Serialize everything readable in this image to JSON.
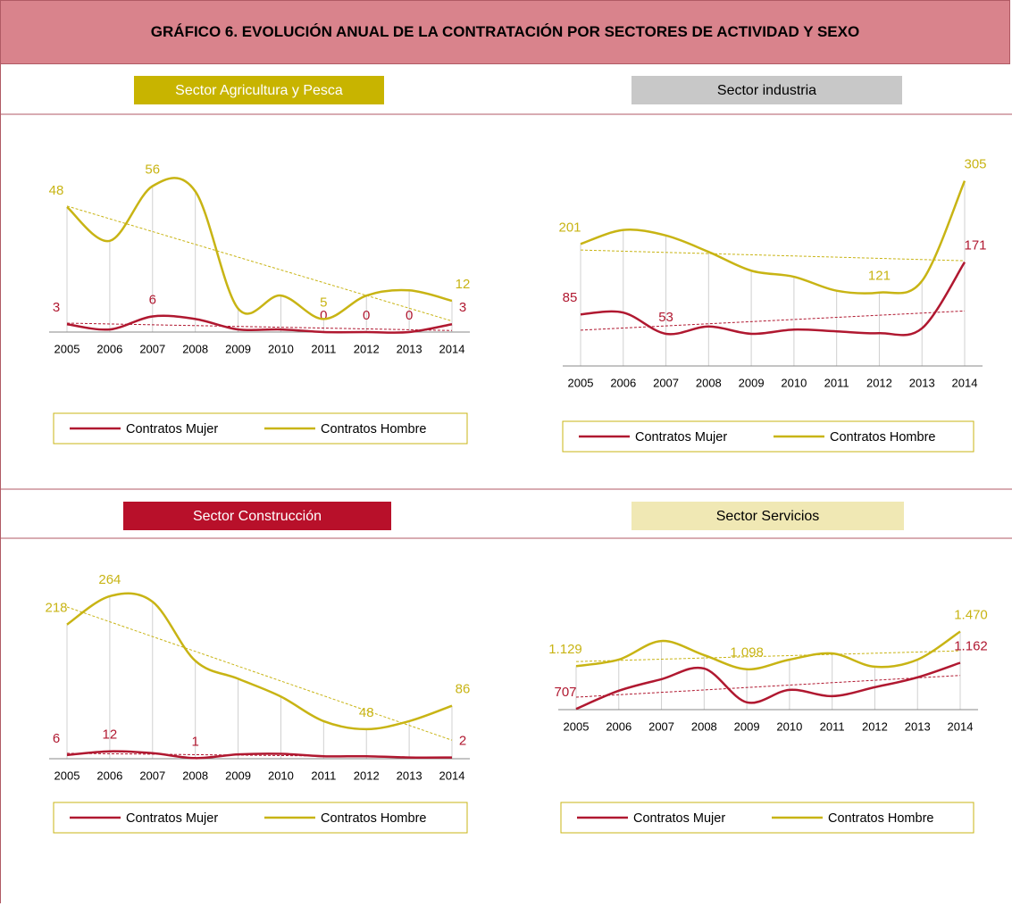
{
  "title": "GRÁFICO  6. EVOLUCIÓN ANUAL DE LA CONTRATACIÓN POR SECTORES DE ACTIVIDAD Y SEXO",
  "chart_data": [
    {
      "type": "line",
      "title": "Sector Agricultura y Pesca",
      "title_color": "#c8b400",
      "title_text_color": "#ffffff",
      "categories": [
        "2005",
        "2006",
        "2007",
        "2008",
        "2009",
        "2010",
        "2011",
        "2012",
        "2013",
        "2014"
      ],
      "ylim": [
        0,
        62
      ],
      "series": [
        {
          "name": "Contratos Mujer",
          "color": "#b01830",
          "values": [
            3,
            1,
            6,
            5,
            1,
            1,
            0,
            0,
            0,
            3
          ],
          "value_labels": [
            "3",
            null,
            "6",
            null,
            null,
            null,
            "0",
            "0",
            "0",
            "3"
          ]
        },
        {
          "name": "Contratos Hombre",
          "color": "#c8b414",
          "values": [
            48,
            35,
            56,
            54,
            9,
            14,
            5,
            14,
            16,
            12
          ],
          "value_labels": [
            "48",
            null,
            "56",
            null,
            null,
            null,
            "5",
            null,
            null,
            "12"
          ]
        }
      ]
    },
    {
      "type": "line",
      "title": "Sector industria",
      "title_color": "#c8c8c8",
      "title_text_color": "#000000",
      "categories": [
        "2005",
        "2006",
        "2007",
        "2008",
        "2009",
        "2010",
        "2011",
        "2012",
        "2013",
        "2014"
      ],
      "ylim": [
        0,
        325
      ],
      "series": [
        {
          "name": "Contratos Mujer",
          "color": "#b01830",
          "values": [
            85,
            88,
            53,
            65,
            53,
            60,
            57,
            54,
            62,
            171
          ],
          "value_labels": [
            "85",
            null,
            "53",
            null,
            null,
            null,
            null,
            null,
            null,
            "171"
          ]
        },
        {
          "name": "Contratos Hombre",
          "color": "#c8b414",
          "values": [
            201,
            224,
            215,
            188,
            157,
            147,
            124,
            121,
            140,
            305
          ],
          "value_labels": [
            "201",
            null,
            null,
            null,
            null,
            null,
            null,
            "121",
            null,
            "305"
          ]
        }
      ]
    },
    {
      "type": "line",
      "title": "Sector Construcción",
      "title_color": "#b8102a",
      "title_text_color": "#ffffff",
      "categories": [
        "2005",
        "2006",
        "2007",
        "2008",
        "2009",
        "2010",
        "2011",
        "2012",
        "2013",
        "2014"
      ],
      "ylim": [
        0,
        290
      ],
      "series": [
        {
          "name": "Contratos Mujer",
          "color": "#b01830",
          "values": [
            6,
            12,
            9,
            1,
            7,
            8,
            4,
            4,
            2,
            2
          ],
          "value_labels": [
            "6",
            "12",
            null,
            "1",
            null,
            null,
            null,
            null,
            null,
            "2"
          ]
        },
        {
          "name": "Contratos Hombre",
          "color": "#c8b414",
          "values": [
            218,
            264,
            255,
            159,
            130,
            101,
            61,
            48,
            61,
            86
          ],
          "value_labels": [
            "218",
            "264",
            null,
            null,
            null,
            null,
            null,
            "48",
            null,
            "86"
          ]
        }
      ]
    },
    {
      "type": "line",
      "title": "Sector Servicios",
      "title_color": "#f0e8b4",
      "title_text_color": "#000000",
      "categories": [
        "2005",
        "2006",
        "2007",
        "2008",
        "2009",
        "2010",
        "2011",
        "2012",
        "2013",
        "2014"
      ],
      "ylim": [
        700,
        1580
      ],
      "series": [
        {
          "name": "Contratos Mujer",
          "color": "#b01830",
          "values": [
            707,
            886,
            1000,
            1105,
            772,
            895,
            833,
            921,
            1018,
            1162
          ],
          "value_labels": [
            "707",
            null,
            null,
            null,
            null,
            null,
            null,
            null,
            null,
            "1.162"
          ]
        },
        {
          "name": "Contratos Hombre",
          "color": "#c8b414",
          "values": [
            1129,
            1193,
            1377,
            1237,
            1098,
            1193,
            1254,
            1123,
            1193,
            1470
          ],
          "value_labels": [
            "1.129",
            null,
            null,
            null,
            "1.098",
            null,
            null,
            null,
            null,
            "1.470"
          ]
        }
      ]
    }
  ]
}
